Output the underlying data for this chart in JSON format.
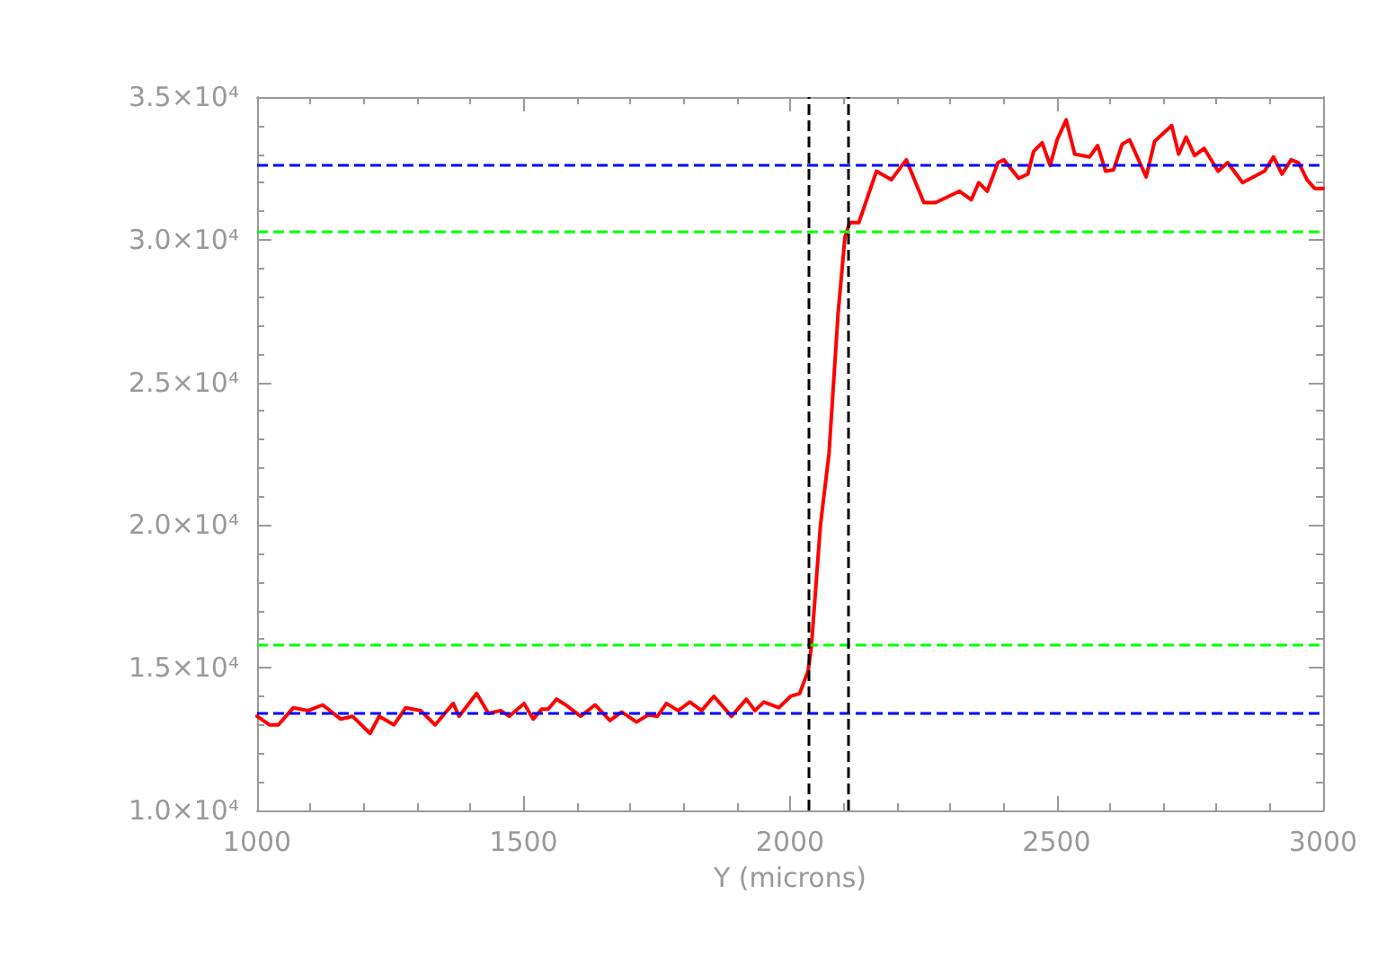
{
  "chart_data": {
    "type": "line",
    "xlabel": "Y (microns)",
    "xlim": [
      1000,
      3000
    ],
    "xticks": [
      1000,
      1500,
      2000,
      2500,
      3000
    ],
    "ylim": [
      10000,
      35000
    ],
    "yticks": [
      {
        "value": 10000,
        "label": "1.0×10⁴"
      },
      {
        "value": 15000,
        "label": "1.5×10⁴"
      },
      {
        "value": 20000,
        "label": "2.0×10⁴"
      },
      {
        "value": 25000,
        "label": "2.5×10⁴"
      },
      {
        "value": 30000,
        "label": "3.0×10⁴"
      },
      {
        "value": 35000,
        "label": "3.5×10⁴"
      }
    ],
    "grid": false,
    "marker": "none",
    "line_style": "solid",
    "series": [
      {
        "color": "#ff0000",
        "x": [
          1000,
          1023,
          1040,
          1068,
          1096,
          1123,
          1157,
          1179,
          1212,
          1229,
          1257,
          1279,
          1307,
          1334,
          1368,
          1379,
          1412,
          1434,
          1457,
          1473,
          1501,
          1518,
          1534,
          1546,
          1562,
          1579,
          1607,
          1634,
          1662,
          1684,
          1712,
          1734,
          1751,
          1768,
          1790,
          1812,
          1834,
          1857,
          1890,
          1918,
          1934,
          1951,
          1979,
          2001,
          2018,
          2034,
          2040,
          2057,
          2073,
          2090,
          2103,
          2112,
          2129,
          2162,
          2190,
          2218,
          2251,
          2273,
          2318,
          2340,
          2354,
          2370,
          2390,
          2401,
          2429,
          2446,
          2457,
          2473,
          2488,
          2501,
          2518,
          2534,
          2562,
          2577,
          2592,
          2607,
          2623,
          2637,
          2668,
          2684,
          2716,
          2729,
          2743,
          2759,
          2777,
          2803,
          2821,
          2849,
          2890,
          2907,
          2923,
          2940,
          2954,
          2970,
          2984,
          3000
        ],
        "values": [
          13300,
          13000,
          13000,
          13600,
          13500,
          13700,
          13200,
          13300,
          12700,
          13300,
          13000,
          13600,
          13500,
          13000,
          13750,
          13300,
          14100,
          13400,
          13500,
          13300,
          13750,
          13200,
          13550,
          13550,
          13900,
          13700,
          13300,
          13700,
          13150,
          13450,
          13100,
          13350,
          13300,
          13750,
          13500,
          13800,
          13500,
          14000,
          13300,
          13900,
          13500,
          13800,
          13600,
          14000,
          14100,
          14900,
          15750,
          20000,
          22500,
          27400,
          30100,
          30600,
          30600,
          32400,
          32100,
          32800,
          31300,
          31300,
          31700,
          31400,
          32000,
          31700,
          32700,
          32800,
          32150,
          32300,
          33100,
          33400,
          32600,
          33500,
          34200,
          33000,
          32900,
          33300,
          32400,
          32450,
          33350,
          33500,
          32200,
          33450,
          34000,
          33000,
          33600,
          32950,
          33200,
          32400,
          32700,
          32000,
          32400,
          32900,
          32300,
          32800,
          32700,
          32100,
          31800,
          31800
        ]
      }
    ],
    "ref_lines": [
      {
        "axis": "y",
        "value": 32600,
        "color": "#0000ff",
        "line_style": "dashed"
      },
      {
        "axis": "y",
        "value": 30300,
        "color": "#00ff00",
        "line_style": "dashed"
      },
      {
        "axis": "y",
        "value": 15800,
        "color": "#00ff00",
        "line_style": "dashed"
      },
      {
        "axis": "y",
        "value": 13400,
        "color": "#0000ff",
        "line_style": "dashed"
      },
      {
        "axis": "x",
        "value": 2033,
        "color": "#000000",
        "line_style": "dashed"
      },
      {
        "axis": "x",
        "value": 2110,
        "color": "#000000",
        "line_style": "dashed"
      }
    ]
  }
}
